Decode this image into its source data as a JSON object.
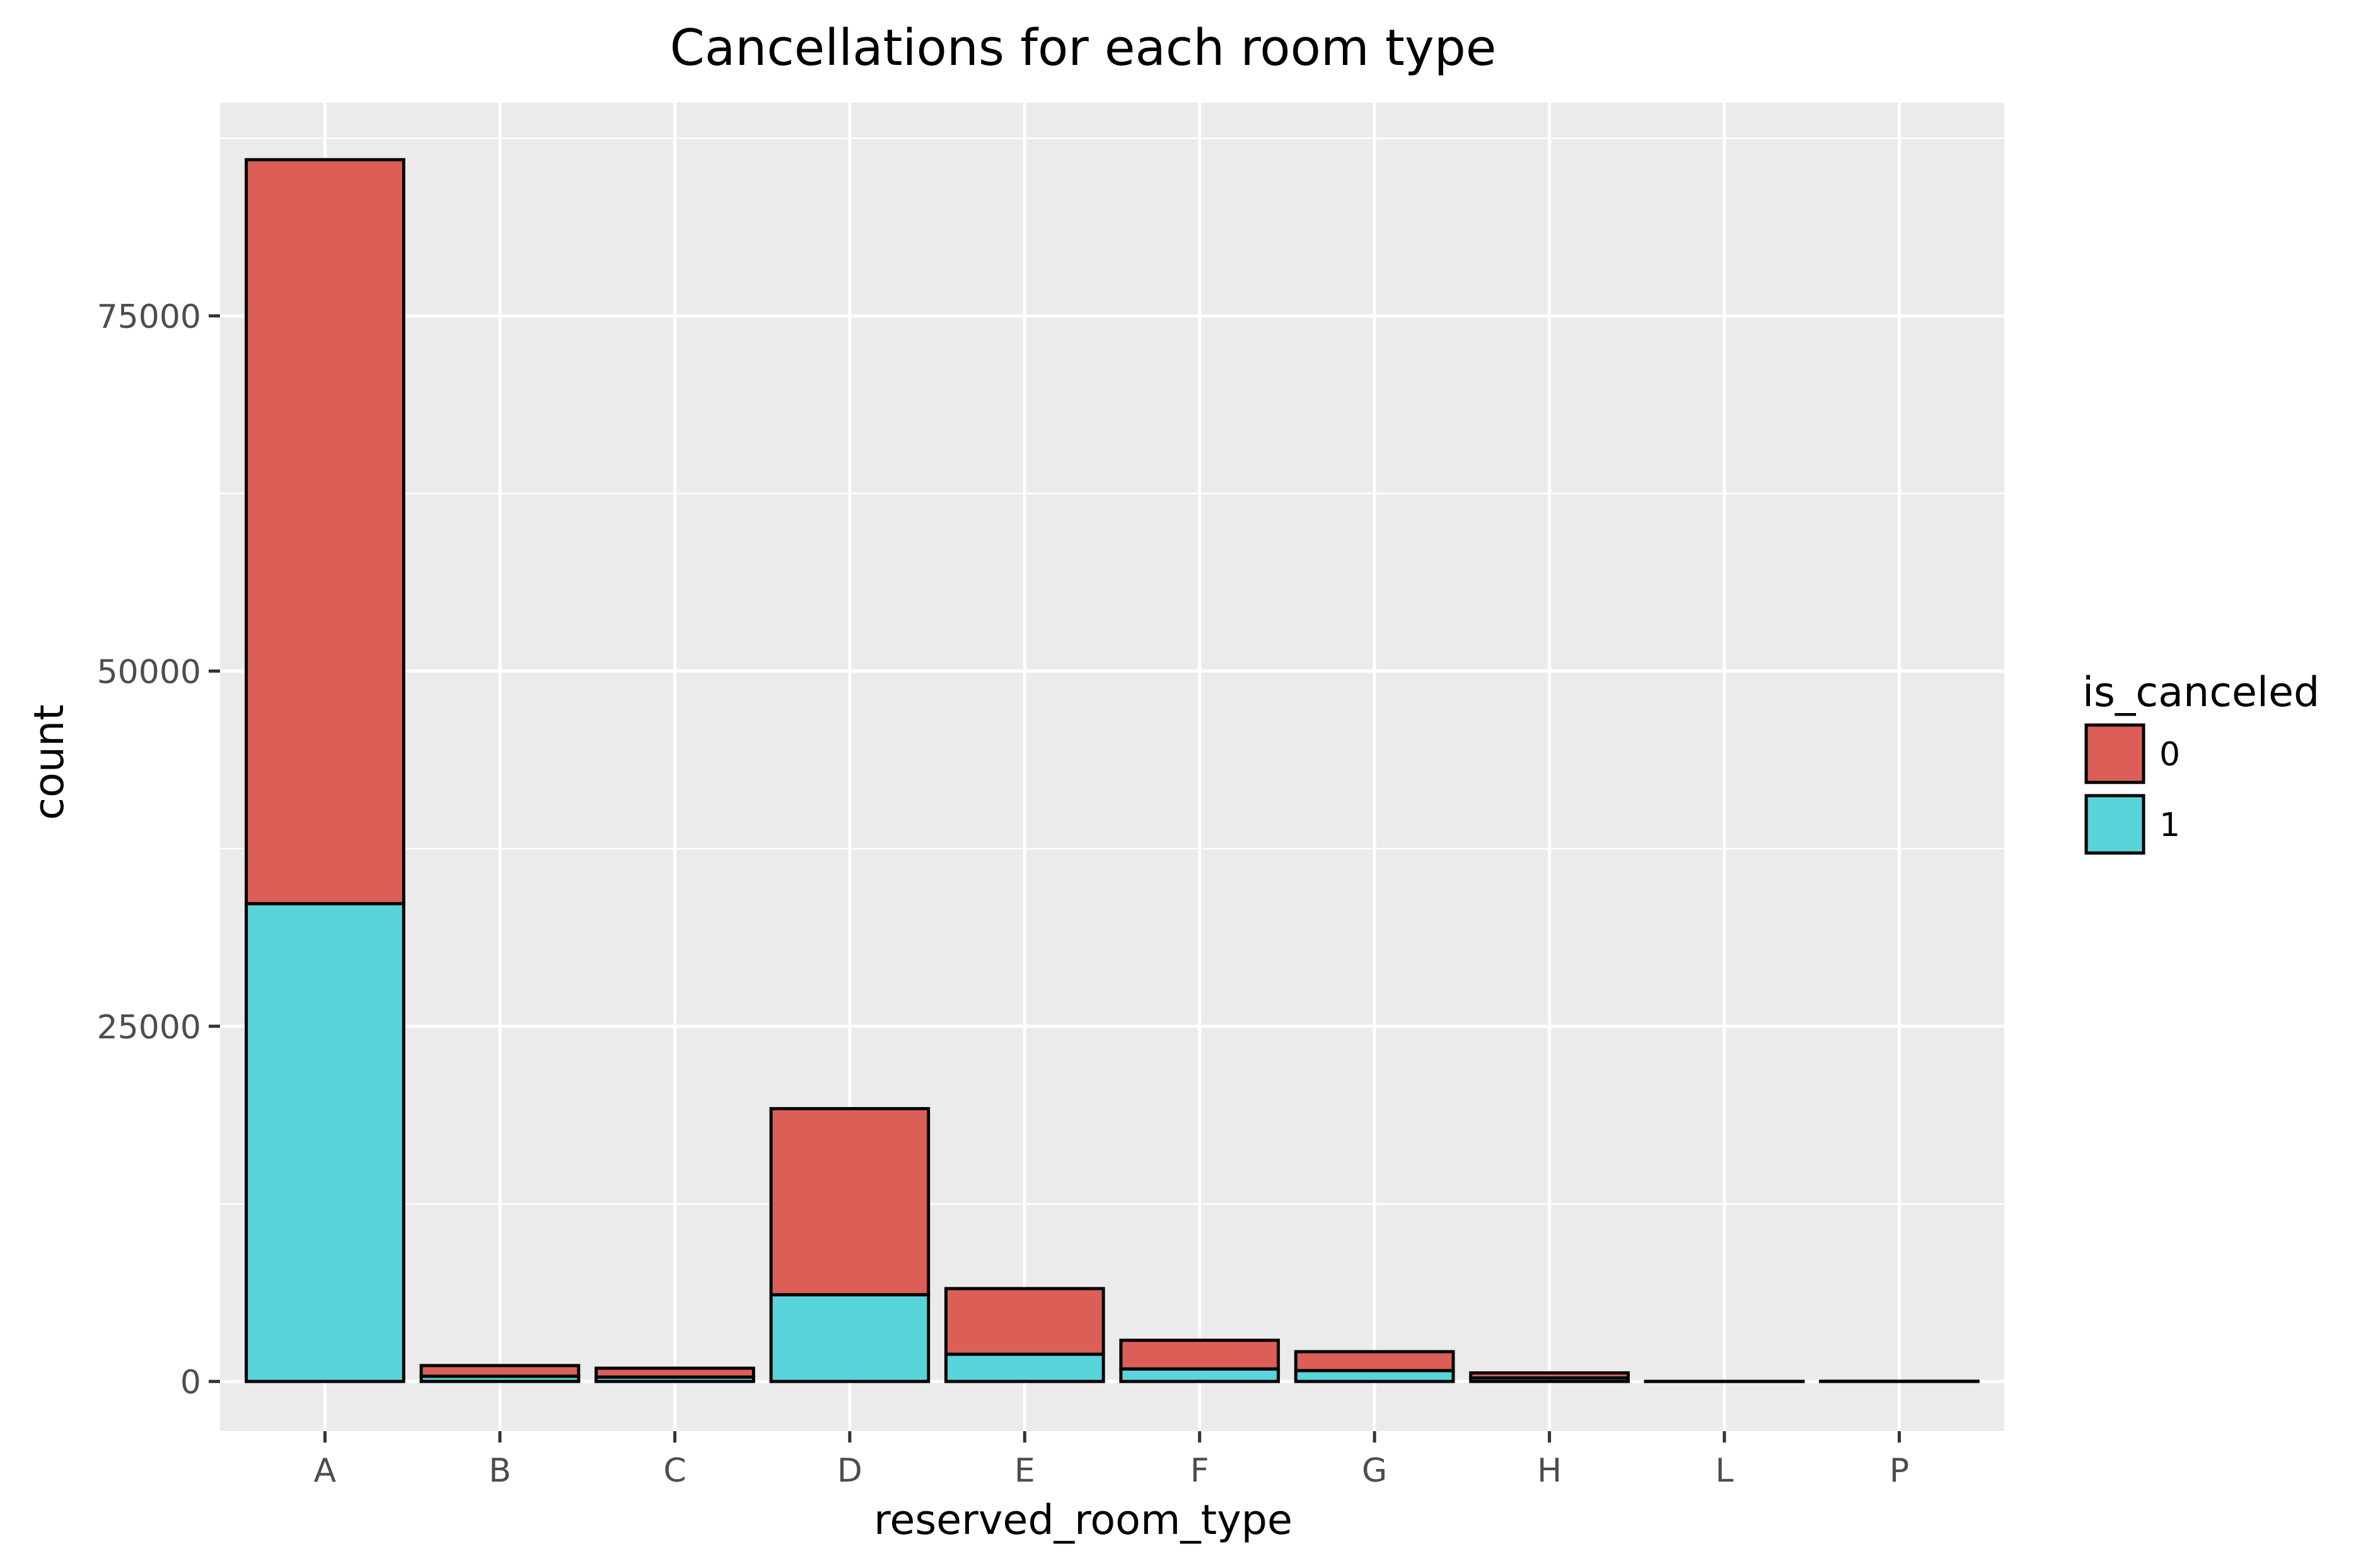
{
  "chart_data": {
    "type": "bar",
    "stacked": true,
    "title": "Cancellations for each room type",
    "xlabel": "reserved_room_type",
    "ylabel": "count",
    "categories": [
      "A",
      "B",
      "C",
      "D",
      "E",
      "F",
      "G",
      "H",
      "L",
      "P"
    ],
    "series": [
      {
        "name": "0",
        "color": "#dc5f57",
        "values": [
          52364,
          750,
          624,
          13099,
          4621,
          2017,
          1331,
          356,
          4,
          0
        ]
      },
      {
        "name": "1",
        "color": "#59d4da",
        "values": [
          33630,
          368,
          308,
          6102,
          1914,
          880,
          763,
          245,
          2,
          12
        ]
      }
    ],
    "ylim": [
      -3500,
      90000
    ],
    "yticks": [
      0,
      25000,
      50000,
      75000
    ],
    "ytick_labels": [
      "0",
      "25000",
      "50000",
      "75000"
    ],
    "grid": true,
    "legend": {
      "title": "is_canceled",
      "position": "right",
      "entries": [
        "0",
        "1"
      ]
    },
    "colors": {
      "panel": "#ebebeb",
      "grid_major": "#ffffff",
      "grid_minor": "#f5f5f5",
      "bar_outline": "#000000",
      "tick": "#333333"
    }
  }
}
